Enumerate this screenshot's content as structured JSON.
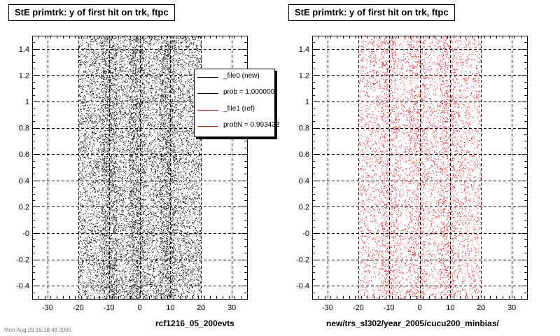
{
  "pads": [
    {
      "title": "StE primtrk: y of first hit on trk, ftpc",
      "xtitle": "rcf1216_05_200evts",
      "color": "#000000"
    },
    {
      "title": "StE primtrk: y of first hit on trk, ftpc",
      "xtitle": "new/trs_sl302/year_2005/cucu200_minbias/",
      "color": "#ff0000"
    }
  ],
  "legend": {
    "entries": [
      {
        "label": "_file0 (new)",
        "color": "#000000"
      },
      {
        "label": "prob = 1.000000",
        "color": "#000000"
      },
      {
        "label": "_file1 (ref)",
        "color": "#ff0000"
      },
      {
        "label": "probN = 0.993432",
        "color": "#ff0000"
      }
    ]
  },
  "footer": "Mon Aug 29 16:18:48 2005",
  "chart_data": [
    {
      "type": "scatter",
      "title": "StE primtrk: y of first hit on trk, ftpc",
      "xlabel": "rcf1216_05_200evts",
      "ylabel": "",
      "xlim": [
        -35,
        35
      ],
      "ylim": [
        -0.5,
        1.5
      ],
      "x_ticks": [
        "-30",
        "-20",
        "-10",
        "0",
        "10",
        "20",
        "30"
      ],
      "y_ticks": [
        "-0.4",
        "-0.2",
        "-0",
        "0.2",
        "0.4",
        "0.6",
        "0.8",
        "1",
        "1.2",
        "1.4"
      ],
      "grid": true,
      "series": [
        {
          "name": "_file0 (new)",
          "color": "#000000",
          "x_range": [
            -20,
            20
          ],
          "y_range": [
            -0.5,
            1.5
          ],
          "density": "uniform, denser bands near x = -10, -1, 9"
        }
      ]
    },
    {
      "type": "scatter",
      "title": "StE primtrk: y of first hit on trk, ftpc",
      "xlabel": "new/trs_sl302/year_2005/cucu200_minbias/",
      "ylabel": "",
      "xlim": [
        -35,
        35
      ],
      "ylim": [
        -0.5,
        1.5
      ],
      "x_ticks": [
        "-30",
        "-20",
        "-10",
        "0",
        "10",
        "20",
        "30"
      ],
      "y_ticks": [
        "-0.4",
        "-0.2",
        "-0",
        "0.2",
        "0.4",
        "0.6",
        "0.8",
        "1",
        "1.2",
        "1.4"
      ],
      "grid": true,
      "series": [
        {
          "name": "_file1 (ref)",
          "color": "#ff0000",
          "x_range": [
            -20,
            20
          ],
          "y_range": [
            -0.5,
            1.5
          ],
          "density": "sparser, denser bands near x = -10, -1, 9"
        }
      ]
    }
  ]
}
